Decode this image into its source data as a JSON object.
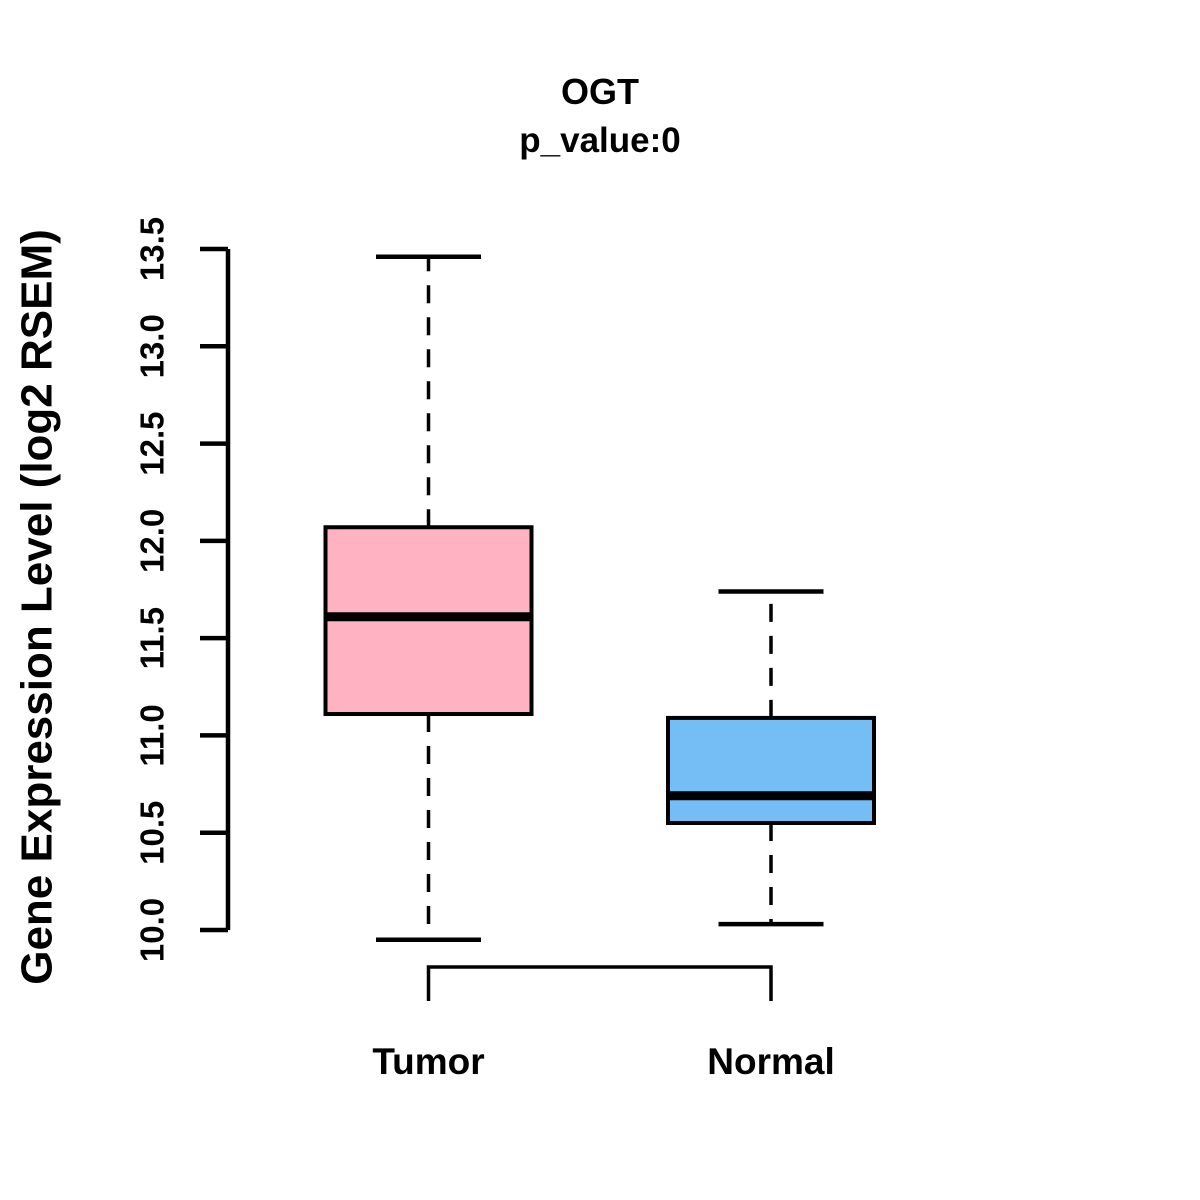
{
  "chart_data": {
    "type": "boxplot",
    "title": "OGT",
    "subtitle": "p_value:0",
    "ylabel": "Gene Expression Level (log2 RSEM)",
    "xlabel": "",
    "ylim": [
      10.0,
      13.5
    ],
    "yticks": [
      "10.0",
      "10.5",
      "11.0",
      "11.5",
      "12.0",
      "12.5",
      "13.0",
      "13.5"
    ],
    "grid": false,
    "legend": "none",
    "categories": [
      "Tumor",
      "Normal"
    ],
    "groups": [
      {
        "label": "Tumor",
        "fill_color": "#FFB3C2",
        "whisker_low": 9.95,
        "q1": 11.11,
        "median": 11.61,
        "q3": 12.07,
        "whisker_high": 13.46
      },
      {
        "label": "Normal",
        "fill_color": "#74BEF5",
        "whisker_low": 10.03,
        "q1": 10.55,
        "median": 10.69,
        "q3": 11.09,
        "whisker_high": 11.74
      }
    ],
    "comparison_bracket": {
      "from": "Tumor",
      "to": "Normal"
    },
    "stroke_color": "#000000",
    "background_color": "#FFFFFF",
    "whisker_line_style": "dashed"
  }
}
